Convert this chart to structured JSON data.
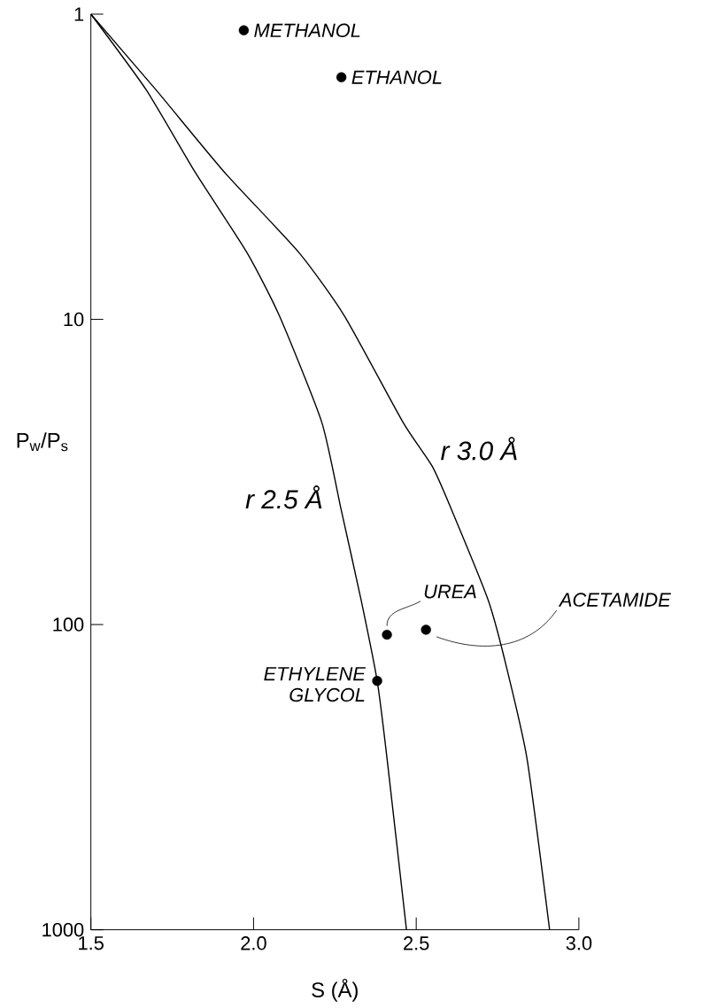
{
  "chart_data": {
    "type": "line",
    "xlabel": "S (Å)",
    "ylabel": "P$_{w}$/P$_{s}$",
    "xlim": [
      1.5,
      3.0
    ],
    "xticks": [
      {
        "value": 1.5,
        "label": "1.5"
      },
      {
        "value": 2.0,
        "label": "2.0"
      },
      {
        "value": 2.5,
        "label": "2.5"
      },
      {
        "value": 3.0,
        "label": "3.0"
      }
    ],
    "ylim": [
      1000,
      1
    ],
    "yticks": [
      1,
      10,
      100,
      1000
    ],
    "log": "y",
    "series": [
      {
        "marker": "none",
        "color": "#000000",
        "x": [
          1.5,
          1.67,
          1.82,
          1.98,
          2.08,
          2.21,
          2.27,
          2.33,
          2.38,
          2.41,
          2.47
        ],
        "values": [
          1,
          1.77,
          3.29,
          6.05,
          9.77,
          21.8,
          42.4,
          82.5,
          153,
          273,
          1000
        ]
      },
      {
        "marker": "none",
        "color": "#000000",
        "x": [
          1.5,
          1.7,
          1.91,
          2.14,
          2.28,
          2.46,
          2.55,
          2.61,
          2.72,
          2.77,
          2.84,
          2.91
        ],
        "values": [
          1,
          1.77,
          3.29,
          6.05,
          9.77,
          21.8,
          30.4,
          42.4,
          82.5,
          128,
          273,
          1000
        ]
      },
      {
        "type": "scatter",
        "marker": "circle",
        "name": "METHANOL",
        "color": "#000000",
        "x": [
          1.97
        ],
        "values": [
          1.13
        ]
      },
      {
        "type": "scatter",
        "marker": "circle",
        "name": "ETHANOL",
        "color": "#000000",
        "x": [
          2.27
        ],
        "values": [
          1.61
        ]
      },
      {
        "type": "scatter",
        "marker": "circle",
        "name": "UREA",
        "color": "#000000",
        "x": [
          2.41
        ],
        "values": [
          108
        ]
      },
      {
        "type": "scatter",
        "marker": "circle",
        "name": "ACETAMIDE",
        "color": "#000000",
        "x": [
          2.53
        ],
        "values": [
          104
        ]
      },
      {
        "type": "scatter",
        "marker": "circle",
        "name": "ETHYLENE GLYCOL",
        "color": "#000000",
        "x": [
          2.38
        ],
        "values": [
          153
        ]
      }
    ],
    "annotations": [
      "r 2.5 Å",
      "r 3.0 Å"
    ]
  }
}
